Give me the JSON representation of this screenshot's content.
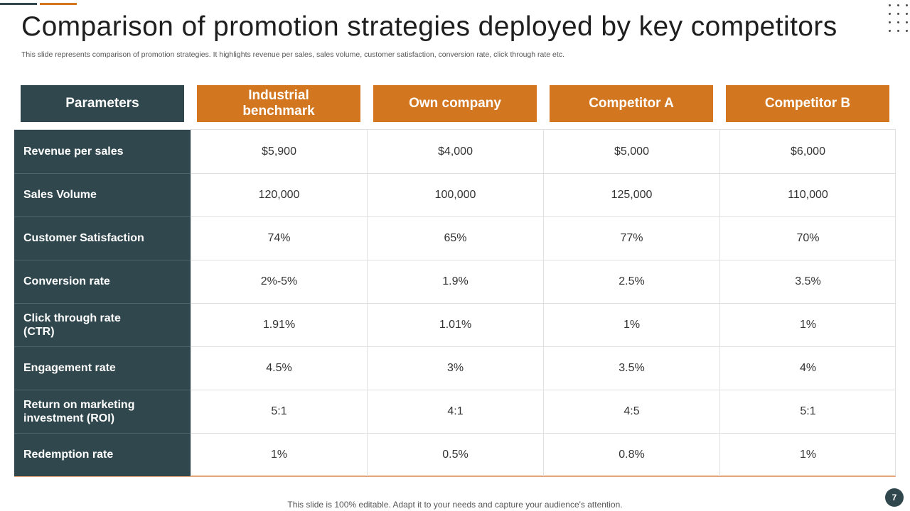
{
  "title": "Comparison of promotion strategies deployed by key competitors",
  "subtitle": "This slide represents comparison of promotion strategies. It highlights revenue per sales, sales volume, customer satisfaction, conversion rate, click through rate etc.",
  "table": {
    "headers": [
      "Parameters",
      "Industrial benchmark",
      "Own company",
      "Competitor A",
      "Competitor B"
    ],
    "rows": [
      {
        "label": "Revenue per sales",
        "values": [
          "$5,900",
          "$4,000",
          "$5,000",
          "$6,000"
        ]
      },
      {
        "label": "Sales Volume",
        "values": [
          "120,000",
          "100,000",
          "125,000",
          "110,000"
        ]
      },
      {
        "label": "Customer Satisfaction",
        "values": [
          "74%",
          "65%",
          "77%",
          "70%"
        ]
      },
      {
        "label": "Conversion rate",
        "values": [
          "2%-5%",
          "1.9%",
          "2.5%",
          "3.5%"
        ]
      },
      {
        "label": "Click through rate (CTR)",
        "values": [
          "1.91%",
          "1.01%",
          "1%",
          "1%"
        ]
      },
      {
        "label": "Engagement rate",
        "values": [
          "4.5%",
          "3%",
          "3.5%",
          "4%"
        ]
      },
      {
        "label": "Return on marketing investment (ROI)",
        "values": [
          "5:1",
          "4:1",
          "4:5",
          "5:1"
        ]
      },
      {
        "label": "Redemption rate",
        "values": [
          "1%",
          "0.5%",
          "0.8%",
          "1%"
        ]
      }
    ]
  },
  "footer": "This slide is 100% editable. Adapt it to your needs and capture your audience's attention.",
  "page_number": "7",
  "colors": {
    "dark_teal": "#2f474d",
    "orange": "#d2761f"
  },
  "icons": {
    "decoration": "dot-grid-icon"
  }
}
